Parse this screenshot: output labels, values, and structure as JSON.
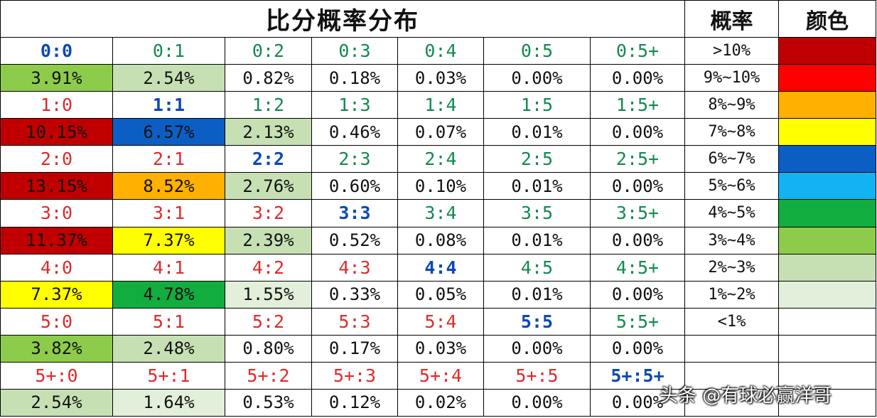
{
  "title": "比分概率分布",
  "header": {
    "probability": "概率",
    "color": "颜色"
  },
  "score_colors": {
    "home": "#e02a2a",
    "draw": "#0b49b4",
    "away": "#118a4e"
  },
  "rows": [
    {
      "scores": [
        "0:0",
        "0:1",
        "0:2",
        "0:3",
        "0:4",
        "0:5",
        "0:5+"
      ],
      "probs": [
        "3.91%",
        "2.54%",
        "0.82%",
        "0.18%",
        "0.03%",
        "0.00%",
        "0.00%"
      ]
    },
    {
      "scores": [
        "1:0",
        "1:1",
        "1:2",
        "1:3",
        "1:4",
        "1:5",
        "1:5+"
      ],
      "probs": [
        "10.15%",
        "6.57%",
        "2.13%",
        "0.46%",
        "0.07%",
        "0.01%",
        "0.00%"
      ]
    },
    {
      "scores": [
        "2:0",
        "2:1",
        "2:2",
        "2:3",
        "2:4",
        "2:5",
        "2:5+"
      ],
      "probs": [
        "13.15%",
        "8.52%",
        "2.76%",
        "0.60%",
        "0.10%",
        "0.01%",
        "0.00%"
      ]
    },
    {
      "scores": [
        "3:0",
        "3:1",
        "3:2",
        "3:3",
        "3:4",
        "3:5",
        "3:5+"
      ],
      "probs": [
        "11.37%",
        "7.37%",
        "2.39%",
        "0.52%",
        "0.08%",
        "0.01%",
        "0.00%"
      ]
    },
    {
      "scores": [
        "4:0",
        "4:1",
        "4:2",
        "4:3",
        "4:4",
        "4:5",
        "4:5+"
      ],
      "probs": [
        "7.37%",
        "4.78%",
        "1.55%",
        "0.33%",
        "0.05%",
        "0.01%",
        "0.00%"
      ]
    },
    {
      "scores": [
        "5:0",
        "5:1",
        "5:2",
        "5:3",
        "5:4",
        "5:5",
        "5:5+"
      ],
      "probs": [
        "3.82%",
        "2.48%",
        "0.80%",
        "0.17%",
        "0.03%",
        "0.00%",
        "0.00%"
      ]
    },
    {
      "scores": [
        "5+:0",
        "5+:1",
        "5+:2",
        "5+:3",
        "5+:4",
        "5+:5",
        "5+:5+"
      ],
      "probs": [
        "2.54%",
        "1.64%",
        "0.53%",
        "0.12%",
        "0.02%",
        "0.00%",
        "0.00%"
      ]
    }
  ],
  "legend": [
    {
      "range": ">10%",
      "color": "#c00000"
    },
    {
      "range": "9%~10%",
      "color": "#ff0000"
    },
    {
      "range": "8%~9%",
      "color": "#ffb000"
    },
    {
      "range": "7%~8%",
      "color": "#ffff00"
    },
    {
      "range": "6%~7%",
      "color": "#0b5fc4"
    },
    {
      "range": "5%~6%",
      "color": "#12b3f2"
    },
    {
      "range": "4%~5%",
      "color": "#12ad3f"
    },
    {
      "range": "3%~4%",
      "color": "#8dcc4a"
    },
    {
      "range": "2%~3%",
      "color": "#c6e0b4"
    },
    {
      "range": "1%~2%",
      "color": "#e2efda"
    },
    {
      "range": "<1%",
      "color": "#ffffff"
    }
  ],
  "watermark": "头条 @有球必赢洋哥"
}
